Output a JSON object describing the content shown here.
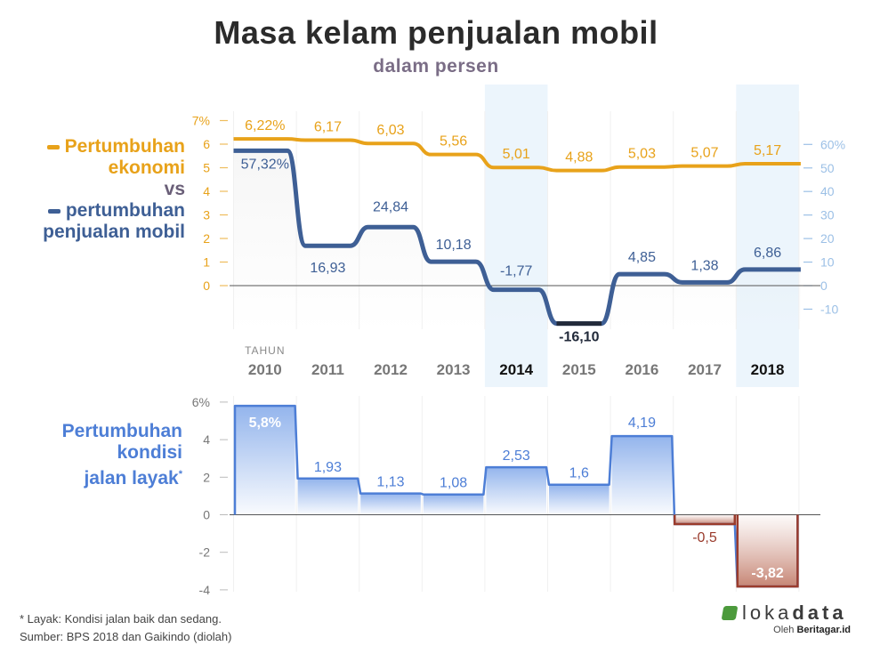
{
  "title": "Masa kelam penjualan mobil",
  "subtitle": "dalam persen",
  "legend": {
    "econ_line1": "Pertumbuhan",
    "econ_line2": "ekonomi",
    "vs": "vs",
    "sales_line1": "pertumbuhan",
    "sales_line2": "penjualan mobil",
    "road_line1": "Pertumbuhan",
    "road_line2": "kondisi",
    "road_line3": "jalan layak"
  },
  "year_caption": "TAHUN",
  "footnote": {
    "line1": "* Layak: Kondisi jalan baik dan sedang.",
    "line2": "Sumber: BPS 2018 dan Gaikindo (diolah)"
  },
  "brand": {
    "logo_light": "loka",
    "logo_bold": "data",
    "byline_prefix": "Oleh",
    "byline_name": "Beritagar.id"
  },
  "colors": {
    "economy": "#e8a21a",
    "sales": "#3e5f95",
    "sales_negative": "#222a3a",
    "road": "#4d7ed6",
    "road_negative": "#9a3b2c",
    "highlight": "#e6f1fb",
    "right_axis": "#9cc0e6",
    "left_axis": "#e8a21a",
    "grid": "#e4e4e4"
  },
  "chart_data": [
    {
      "type": "line",
      "x": [
        "2010",
        "2011",
        "2012",
        "2013",
        "2014",
        "2015",
        "2016",
        "2017",
        "2018"
      ],
      "highlight_years": [
        "2014",
        "2018"
      ],
      "series": [
        {
          "name": "Pertumbuhan ekonomi",
          "axis": "left",
          "values": [
            6.22,
            6.17,
            6.03,
            5.56,
            5.01,
            4.88,
            5.03,
            5.07,
            5.17
          ],
          "labels": [
            "6,22%",
            "6,17",
            "6,03",
            "5,56",
            "5,01",
            "4,88",
            "5,03",
            "5,07",
            "5,17"
          ]
        },
        {
          "name": "pertumbuhan penjualan mobil",
          "axis": "right",
          "values": [
            57.32,
            16.93,
            24.84,
            10.18,
            -1.77,
            -16.1,
            4.85,
            1.38,
            6.86
          ],
          "labels": [
            "57,32%",
            "16,93",
            "24,84",
            "10,18",
            "-1,77",
            "-16,10",
            "4,85",
            "1,38",
            "6,86"
          ]
        }
      ],
      "left_axis": {
        "ylim": [
          0,
          7
        ],
        "ticks": [
          "0",
          "1",
          "2",
          "3",
          "4",
          "5",
          "6",
          "7%"
        ]
      },
      "right_axis": {
        "ylim": [
          -10,
          60
        ],
        "ticks": [
          "-10",
          "0",
          "10",
          "20",
          "30",
          "40",
          "50",
          "60%"
        ]
      },
      "legend": "left"
    },
    {
      "type": "area",
      "x": [
        "2010",
        "2011",
        "2012",
        "2013",
        "2014",
        "2015",
        "2016",
        "2017",
        "2018"
      ],
      "series": [
        {
          "name": "Pertumbuhan kondisi jalan layak",
          "values": [
            5.8,
            1.93,
            1.13,
            1.08,
            2.53,
            1.6,
            4.19,
            -0.5,
            -3.82
          ],
          "labels": [
            "5,8%",
            "1,93",
            "1,13",
            "1,08",
            "2,53",
            "1,6",
            "4,19",
            "-0,5",
            "-3,82"
          ]
        }
      ],
      "ylim": [
        -4,
        6
      ],
      "ticks": [
        "-4",
        "-2",
        "0",
        "2",
        "4",
        "6%"
      ]
    }
  ]
}
